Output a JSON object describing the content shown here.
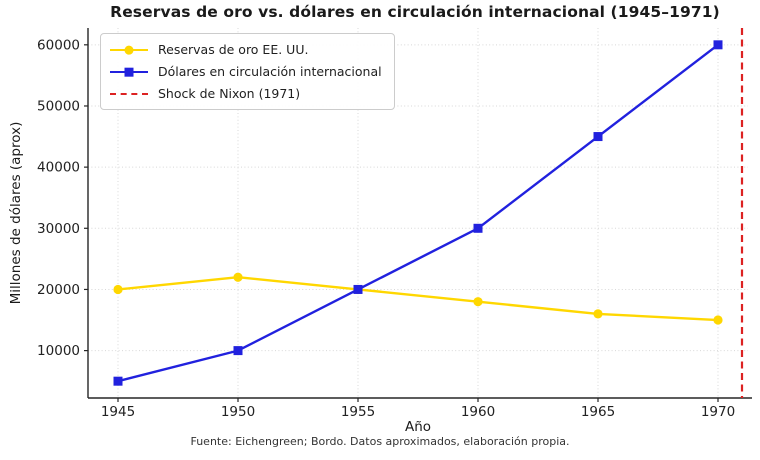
{
  "page": {
    "background": "#ffffff"
  },
  "chart_data": {
    "type": "line",
    "title": "Reservas de oro vs. dólares en circulación internacional (1945–1971)",
    "xlabel": "Año",
    "ylabel": "Millones de dólares (aprox)",
    "source_note": "Fuente: Eichengreen; Bordo. Datos aproximados, elaboración propia.",
    "x": [
      1945,
      1950,
      1955,
      1960,
      1965,
      1970
    ],
    "series": [
      {
        "name": "Reservas de oro EE. UU.",
        "color": "#FFD700",
        "marker": "circle",
        "values": [
          20000,
          22000,
          20000,
          18000,
          16000,
          15000
        ]
      },
      {
        "name": "Dólares en circulación internacional",
        "color": "#2121DE",
        "marker": "square",
        "values": [
          5000,
          10000,
          20000,
          30000,
          45000,
          60000
        ]
      }
    ],
    "vline": {
      "name": "Shock de Nixon (1971)",
      "x": 1971,
      "color": "#DC2222",
      "style": "dashed"
    },
    "xlim": [
      1943.75,
      1971.25
    ],
    "ylim": [
      2250,
      62750
    ],
    "xticks": [
      1945,
      1950,
      1955,
      1960,
      1965,
      1970
    ],
    "yticks": [
      10000,
      20000,
      30000,
      40000,
      50000,
      60000
    ],
    "grid": true,
    "grid_style": "dotted",
    "legend_position": "upper left"
  }
}
